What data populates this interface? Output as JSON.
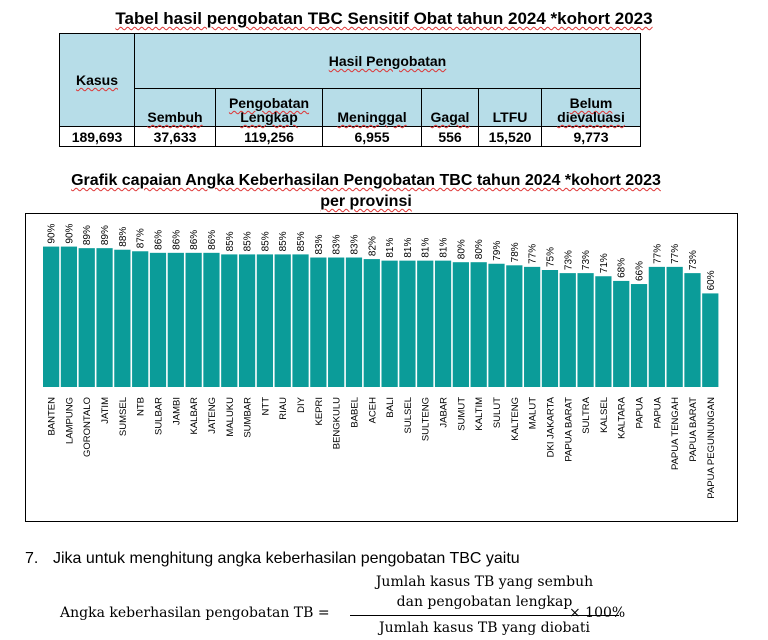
{
  "table": {
    "title": "Tabel hasil pengobatan TBC Sensitif Obat tahun 2024 *kohort 2023",
    "header_kasus": "Kasus",
    "header_group": "Hasil Pengobatan",
    "columns": [
      "Sembuh",
      "Pengobatan Lengkap",
      "Meninggal",
      "Gagal",
      "LTFU",
      "Belum dievaluasi"
    ],
    "kasus_value": "189,693",
    "values": [
      "37,633",
      "119,256",
      "6,955",
      "556",
      "15,520",
      "9,773"
    ]
  },
  "chart_data": {
    "type": "bar",
    "title_line1": "Grafik capaian Angka Keberhasilan Pengobatan TBC tahun 2024 *kohort 2023",
    "title_line2": "per provinsi",
    "categories": [
      "BANTEN",
      "LAMPUNG",
      "GORONTALO",
      "JATIM",
      "SUMSEL",
      "NTB",
      "SULBAR",
      "JAMBI",
      "KALBAR",
      "JATENG",
      "MALUKU",
      "SUMBAR",
      "NTT",
      "RIAU",
      "DIY",
      "KEPRI",
      "BENGKULU",
      "BABEL",
      "ACEH",
      "BALI",
      "SULSEL",
      "SULTENG",
      "JABAR",
      "SUMUT",
      "KALTIM",
      "SULUT",
      "KALTENG",
      "MALUT",
      "DKI JAKARTA",
      "PAPUA BARAT",
      "SULTRA",
      "KALSEL",
      "KALTARA",
      "PAPUA",
      "PAPUA",
      "PAPUA TENGAH",
      "PAPUA BARAT",
      "PAPUA PEGUNUNGAN"
    ],
    "values": [
      90,
      90,
      89,
      89,
      88,
      87,
      86,
      86,
      86,
      86,
      85,
      85,
      85,
      85,
      85,
      83,
      83,
      83,
      82,
      81,
      81,
      81,
      81,
      80,
      80,
      79,
      78,
      77,
      75,
      73,
      73,
      71,
      68,
      66,
      77,
      77,
      73,
      60
    ],
    "value_suffix": "%",
    "bar_color": "#0b9c99",
    "ylim": [
      0,
      100
    ]
  },
  "question": {
    "number": "7.",
    "text": "Jika untuk menghitung angka keberhasilan pengobatan TBC yaitu"
  },
  "formula": {
    "lhs": "Angka keberhasilan pengobatan TB =",
    "numerator_line1": "Jumlah kasus TB yang sembuh",
    "numerator_line2": "dan pengobatan lengkap",
    "denominator": "Jumlah kasus TB yang diobati",
    "rhs": "× 100%"
  }
}
